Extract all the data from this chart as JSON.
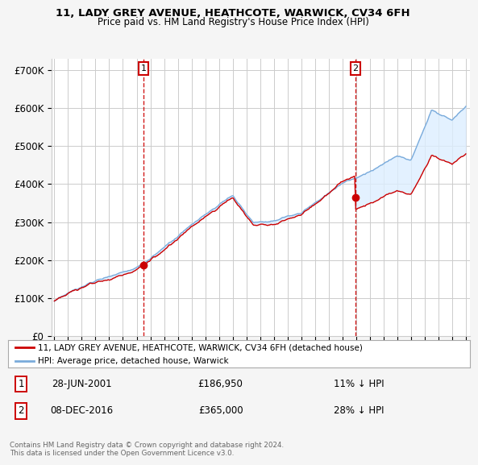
{
  "title": "11, LADY GREY AVENUE, HEATHCOTE, WARWICK, CV34 6FH",
  "subtitle": "Price paid vs. HM Land Registry's House Price Index (HPI)",
  "ylim": [
    0,
    730000
  ],
  "yticks": [
    0,
    100000,
    200000,
    300000,
    400000,
    500000,
    600000,
    700000
  ],
  "ytick_labels": [
    "£0",
    "£100K",
    "£200K",
    "£300K",
    "£400K",
    "£500K",
    "£600K",
    "£700K"
  ],
  "legend_line1": "11, LADY GREY AVENUE, HEATHCOTE, WARWICK, CV34 6FH (detached house)",
  "legend_line2": "HPI: Average price, detached house, Warwick",
  "marker1_date": "28-JUN-2001",
  "marker1_price": "£186,950",
  "marker1_hpi": "11% ↓ HPI",
  "marker2_date": "08-DEC-2016",
  "marker2_price": "£365,000",
  "marker2_hpi": "28% ↓ HPI",
  "footnote": "Contains HM Land Registry data © Crown copyright and database right 2024.\nThis data is licensed under the Open Government Licence v3.0.",
  "red_color": "#cc0000",
  "blue_color": "#7aabdb",
  "blue_fill_color": "#ddeeff",
  "background_color": "#f5f5f5",
  "plot_bg_color": "#ffffff",
  "marker1_x": 2001.5,
  "marker2_x": 2016.95
}
